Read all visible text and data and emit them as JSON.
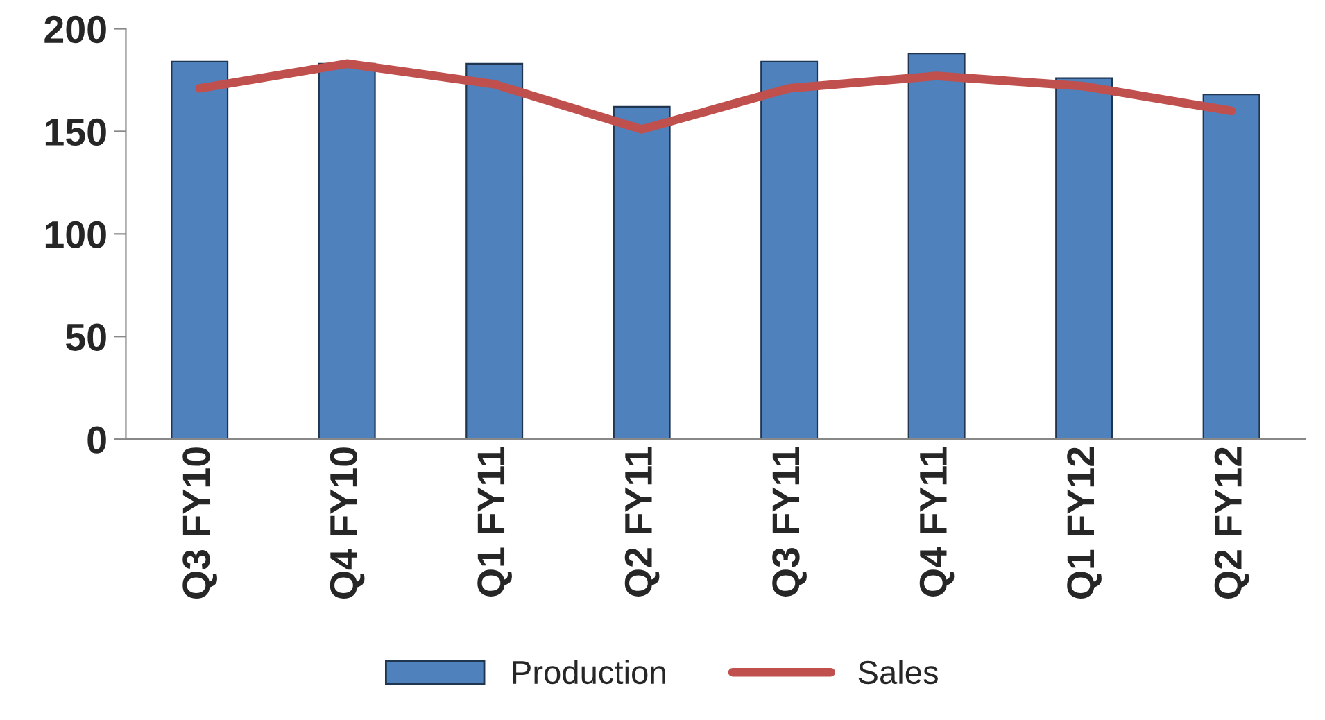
{
  "chart_data": {
    "type": "bar",
    "categories": [
      "Q3 FY10",
      "Q4 FY10",
      "Q1 FY11",
      "Q2 FY11",
      "Q3 FY11",
      "Q4 FY11",
      "Q1 FY12",
      "Q2 FY12"
    ],
    "series": [
      {
        "name": "Production",
        "color": "#4f81bd",
        "values": [
          184,
          183,
          183,
          162,
          184,
          188,
          176,
          168
        ]
      },
      {
        "name": "Sales",
        "type": "line",
        "color": "#c0504d",
        "values": [
          171,
          183,
          173,
          151,
          171,
          177,
          172,
          160
        ]
      }
    ],
    "ylim": [
      0,
      200
    ],
    "yticks": [
      0,
      50,
      100,
      150,
      200
    ],
    "grid": false,
    "legend": "bottom",
    "marker": "none"
  }
}
